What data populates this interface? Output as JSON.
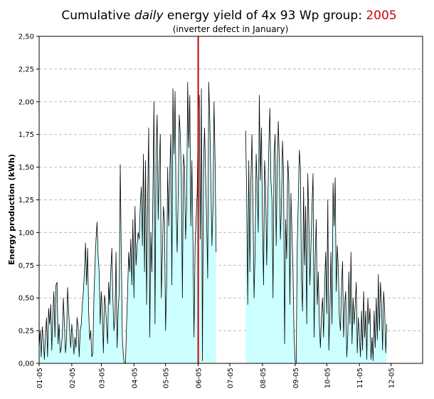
{
  "chart_data": {
    "type": "area",
    "title": {
      "prefix": "Cumulative ",
      "emphasis": "daily",
      "middle": "  energy yield of 4x 93 Wp group: ",
      "year": "2005"
    },
    "subtitle": "(inverter defect in January)",
    "ylabel": "Energy production (kWh)",
    "xlabel": "",
    "ylim": [
      0,
      2.5
    ],
    "xlim": [
      1,
      365
    ],
    "y_ticks": [
      "0,00",
      "0,25",
      "0,50",
      "0,75",
      "1,00",
      "1,25",
      "1,50",
      "1,75",
      "2,00",
      "2,25",
      "2,50"
    ],
    "x_tick_labels": [
      "01-05",
      "02-05",
      "03-05",
      "04-05",
      "05-05",
      "06-05",
      "07-05",
      "08-05",
      "09-05",
      "10-05",
      "11-05",
      "12-05"
    ],
    "x_tick_days": [
      1,
      32,
      60,
      91,
      121,
      152,
      182,
      213,
      244,
      274,
      305,
      335
    ],
    "grid": "horizontal-dashed",
    "marker_line_day": 152,
    "gap_days": [
      172,
      197
    ],
    "colors": {
      "fill": "#ccffff",
      "line": "#000000",
      "marker": "#cc0000",
      "grid": "#bbbbbb"
    },
    "series": [
      {
        "values": [
          0.12,
          0.25,
          0.05,
          0.28,
          0.18,
          0.03,
          0.22,
          0.35,
          0.05,
          0.42,
          0.3,
          0.45,
          0.1,
          0.38,
          0.55,
          0.2,
          0.6,
          0.62,
          0.15,
          0.3,
          0.08,
          0.12,
          0.22,
          0.5,
          0.3,
          0.08,
          0.18,
          0.58,
          0.4,
          0.25,
          0.12,
          0.3,
          0.2,
          0.07,
          0.2,
          0.12,
          0.35,
          0.28,
          0.05,
          0.25,
          0.3,
          0.45,
          0.55,
          0.7,
          0.92,
          0.6,
          0.88,
          0.4,
          0.18,
          0.25,
          0.05,
          0.08,
          0.5,
          0.75,
          0.95,
          1.08,
          0.82,
          0.7,
          0.3,
          0.55,
          0.4,
          0.08,
          0.52,
          0.45,
          0.3,
          0.15,
          0.62,
          0.45,
          0.7,
          0.88,
          0.5,
          0.25,
          0.35,
          0.85,
          0.12,
          0.4,
          0.55,
          1.52,
          0.82,
          0.2,
          0.05,
          0.0,
          0.0,
          0.3,
          0.55,
          0.85,
          0.7,
          0.95,
          0.6,
          1.1,
          0.5,
          1.2,
          0.75,
          0.9,
          1.0,
          0.95,
          1.2,
          1.35,
          0.9,
          1.6,
          0.7,
          1.55,
          0.45,
          1.25,
          1.8,
          0.2,
          1.0,
          0.7,
          1.3,
          2.0,
          0.3,
          1.6,
          1.9,
          1.1,
          1.5,
          1.75,
          0.5,
          0.85,
          1.2,
          1.1,
          0.25,
          0.6,
          1.5,
          1.05,
          1.45,
          1.75,
          0.6,
          2.1,
          1.6,
          2.08,
          1.2,
          0.85,
          1.3,
          1.9,
          1.75,
          1.4,
          0.5,
          1.6,
          1.5,
          0.95,
          1.2,
          2.15,
          1.65,
          2.05,
          1.05,
          1.55,
          0.95,
          0.2,
          0.9,
          1.1,
          1.3,
          1.9,
          2.05,
          0.95,
          2.1,
          0.02,
          1.5,
          1.8,
          1.45,
          1.1,
          0.65,
          2.15,
          1.85,
          1.4,
          0.9,
          1.2,
          2.0,
          1.55,
          0.85
        ],
        "values_after_gap": [
          1.78,
          1.3,
          0.45,
          1.55,
          0.7,
          1.4,
          1.75,
          1.2,
          0.5,
          0.85,
          1.6,
          1.35,
          1.0,
          2.05,
          1.4,
          1.8,
          1.1,
          0.6,
          1.55,
          1.35,
          0.75,
          1.2,
          1.65,
          1.95,
          1.4,
          1.25,
          0.5,
          1.6,
          1.75,
          0.9,
          1.5,
          1.85,
          1.55,
          0.95,
          1.2,
          1.7,
          1.45,
          0.15,
          1.1,
          0.8,
          1.55,
          1.4,
          0.45,
          1.3,
          1.0,
          0.7,
          0.2,
          0.02,
          0.0,
          0.9,
          1.25,
          1.63,
          1.5,
          0.65,
          0.4,
          1.35,
          0.75,
          1.2,
          0.3,
          1.45,
          1.1,
          0.6,
          0.9,
          1.2,
          1.45,
          0.2,
          0.8,
          1.1,
          0.45,
          0.7,
          0.3,
          0.12,
          0.38,
          0.5,
          0.2,
          0.6,
          0.85,
          0.38,
          1.25,
          0.1,
          0.4,
          0.85,
          0.3,
          1.38,
          1.05,
          1.42,
          0.55,
          0.9,
          0.72,
          0.35,
          0.25,
          0.58,
          0.78,
          0.2,
          0.45,
          0.55,
          0.05,
          0.22,
          0.7,
          0.3,
          0.85,
          0.15,
          0.5,
          0.3,
          0.45,
          0.62,
          0.08,
          0.35,
          0.22,
          0.05,
          0.4,
          0.1,
          0.55,
          0.2,
          0.4,
          0.03,
          0.5,
          0.3,
          0.42,
          0.03,
          0.2,
          0.02,
          0.4,
          0.12,
          0.5,
          0.18,
          0.68,
          0.25,
          0.62,
          0.45,
          0.1,
          0.55,
          0.4,
          0.08,
          0.3
        ]
      }
    ]
  }
}
